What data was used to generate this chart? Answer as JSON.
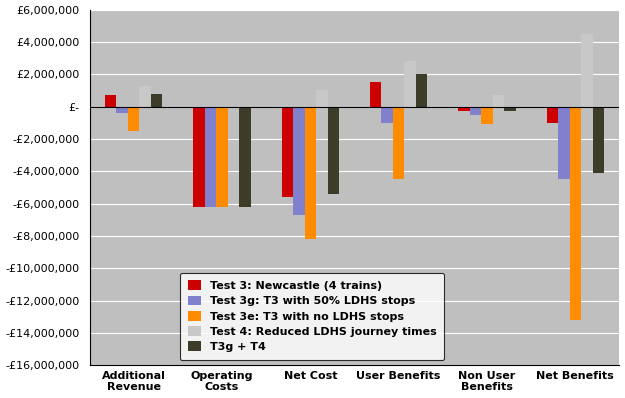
{
  "categories": [
    "Additional\nRevenue",
    "Operating\nCosts",
    "Net Cost",
    "User Benefits",
    "Non User\nBenefits",
    "Net Benefits"
  ],
  "series": [
    {
      "label": "Test 3: Newcastle (4 trains)",
      "color": "#CC0000",
      "values": [
        700000,
        -6200000,
        -5600000,
        1500000,
        -250000,
        -1000000
      ]
    },
    {
      "label": "Test 3g: T3 with 50% LDHS stops",
      "color": "#8080CC",
      "values": [
        -400000,
        -6200000,
        -6700000,
        -1000000,
        -500000,
        -4500000
      ]
    },
    {
      "label": "Test 3e: T3 with no LDHS stops",
      "color": "#FF8C00",
      "values": [
        -1500000,
        -6200000,
        -8200000,
        -4500000,
        -1100000,
        -13200000
      ]
    },
    {
      "label": "Test 4: Reduced LDHS journey times",
      "color": "#C8C8C8",
      "values": [
        1300000,
        0,
        1000000,
        2800000,
        700000,
        4500000
      ]
    },
    {
      "label": "T3g + T4",
      "color": "#3C3C28",
      "values": [
        800000,
        -6200000,
        -5400000,
        2000000,
        -300000,
        -4100000
      ]
    }
  ],
  "ylim": [
    -16000000,
    6000000
  ],
  "yticks": [
    -16000000,
    -14000000,
    -12000000,
    -10000000,
    -8000000,
    -6000000,
    -4000000,
    -2000000,
    0,
    2000000,
    4000000,
    6000000
  ],
  "outer_bg": "#FFFFFF",
  "plot_bg_color": "#BFBFBF",
  "grid_color": "#FFFFFF",
  "bar_width": 0.13
}
